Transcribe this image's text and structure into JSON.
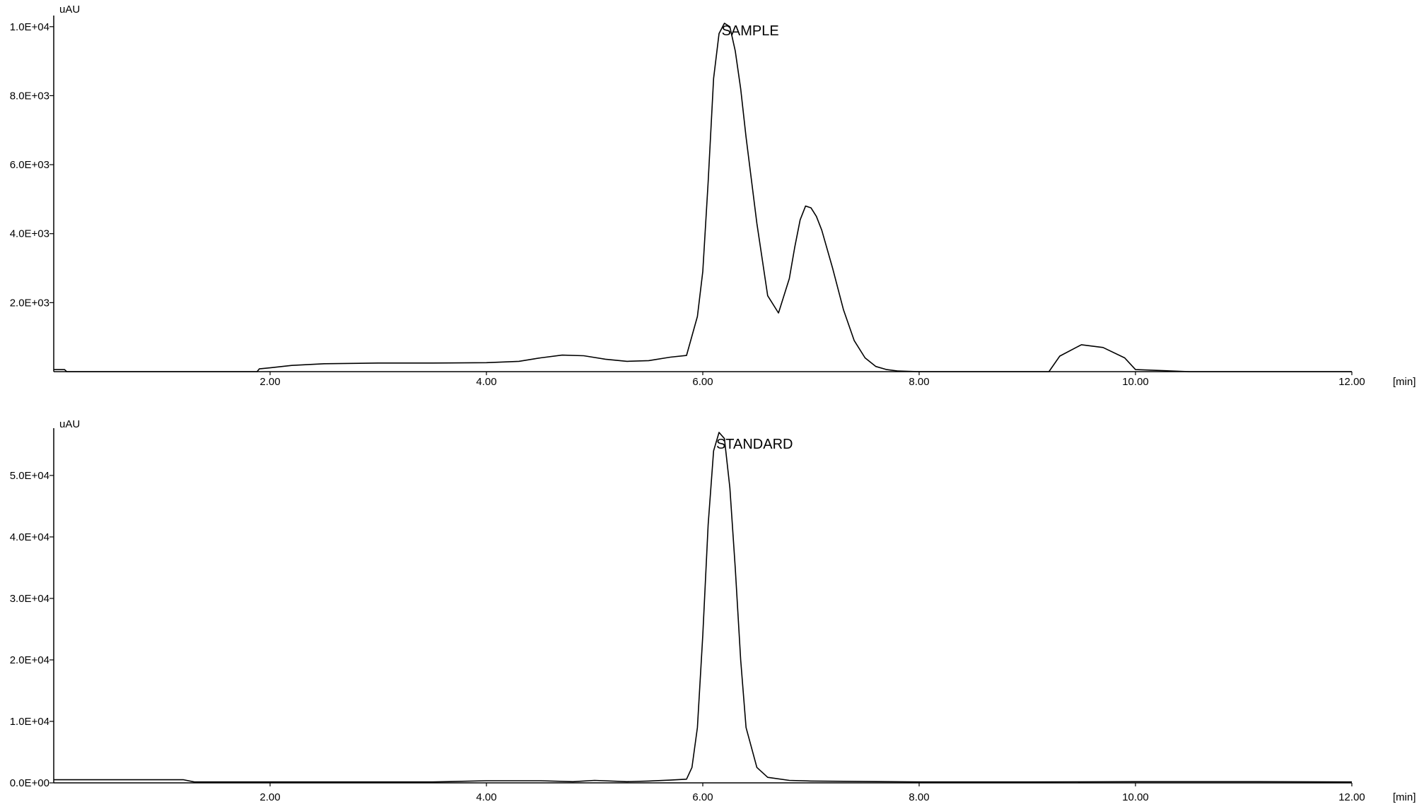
{
  "chart_data": [
    {
      "type": "line",
      "annotation": "SAMPLE",
      "ylabel": "uAU",
      "xlabel": "[min]",
      "xlim": [
        0,
        12
      ],
      "ylim": [
        0,
        10200
      ],
      "x_ticks": [
        2,
        4,
        6,
        8,
        10,
        12
      ],
      "x_tick_labels": [
        "2.00",
        "4.00",
        "6.00",
        "8.00",
        "10.00",
        "12.00"
      ],
      "y_ticks": [
        2000,
        4000,
        6000,
        8000,
        10000
      ],
      "y_tick_labels": [
        "2.0E+03",
        "4.0E+03",
        "6.0E+03",
        "8.0E+03",
        "1.0E+04"
      ],
      "line_color": "#000000",
      "grid": false,
      "series": [
        {
          "x": [
            0.0,
            0.1,
            0.12,
            1.88,
            1.9,
            2.0,
            2.2,
            2.5,
            3.0,
            3.5,
            4.0,
            4.3,
            4.5,
            4.7,
            4.9,
            5.1,
            5.3,
            5.5,
            5.7,
            5.85,
            5.95,
            6.0,
            6.05,
            6.1,
            6.15,
            6.2,
            6.25,
            6.3,
            6.35,
            6.4,
            6.5,
            6.6,
            6.7,
            6.8,
            6.85,
            6.9,
            6.95,
            7.0,
            7.05,
            7.1,
            7.2,
            7.3,
            7.4,
            7.5,
            7.6,
            7.7,
            7.8,
            8.0,
            9.0,
            9.2,
            9.3,
            9.5,
            9.7,
            9.9,
            10.0,
            10.5,
            11.0,
            12.0
          ],
          "y": [
            60,
            60,
            0,
            0,
            80,
            110,
            180,
            230,
            250,
            250,
            260,
            300,
            400,
            480,
            460,
            360,
            300,
            320,
            420,
            470,
            1600,
            2900,
            5500,
            8500,
            9800,
            10100,
            10000,
            9300,
            8200,
            6800,
            4300,
            2200,
            1700,
            2700,
            3600,
            4400,
            4800,
            4750,
            4500,
            4100,
            3000,
            1800,
            900,
            400,
            150,
            60,
            20,
            0,
            0,
            0,
            450,
            780,
            700,
            400,
            60,
            0,
            0,
            0
          ]
        }
      ]
    },
    {
      "type": "line",
      "annotation": "STANDARD",
      "ylabel": "uAU",
      "xlabel": "[min]",
      "xlim": [
        0,
        12
      ],
      "ylim": [
        0,
        57000
      ],
      "x_ticks": [
        2,
        4,
        6,
        8,
        10,
        12
      ],
      "x_tick_labels": [
        "2.00",
        "4.00",
        "6.00",
        "8.00",
        "10.00",
        "12.00"
      ],
      "y_ticks": [
        0,
        10000,
        20000,
        30000,
        40000,
        50000
      ],
      "y_tick_labels": [
        "0.0E+00",
        "1.0E+04",
        "2.0E+04",
        "3.0E+04",
        "4.0E+04",
        "5.0E+04"
      ],
      "line_color": "#000000",
      "grid": false,
      "series": [
        {
          "x": [
            0.0,
            1.2,
            1.3,
            2.0,
            3.5,
            4.0,
            4.5,
            4.8,
            5.0,
            5.3,
            5.5,
            5.7,
            5.85,
            5.9,
            5.95,
            6.0,
            6.05,
            6.1,
            6.15,
            6.2,
            6.25,
            6.3,
            6.35,
            6.4,
            6.5,
            6.6,
            6.8,
            7.0,
            8.0,
            9.0,
            10.0,
            11.0,
            12.0
          ],
          "y": [
            500,
            500,
            150,
            150,
            150,
            350,
            350,
            200,
            400,
            200,
            300,
            450,
            600,
            2500,
            9000,
            24000,
            42000,
            54000,
            57000,
            56000,
            48000,
            35000,
            20000,
            9000,
            2500,
            900,
            400,
            300,
            150,
            150,
            200,
            200,
            150
          ]
        }
      ]
    }
  ]
}
